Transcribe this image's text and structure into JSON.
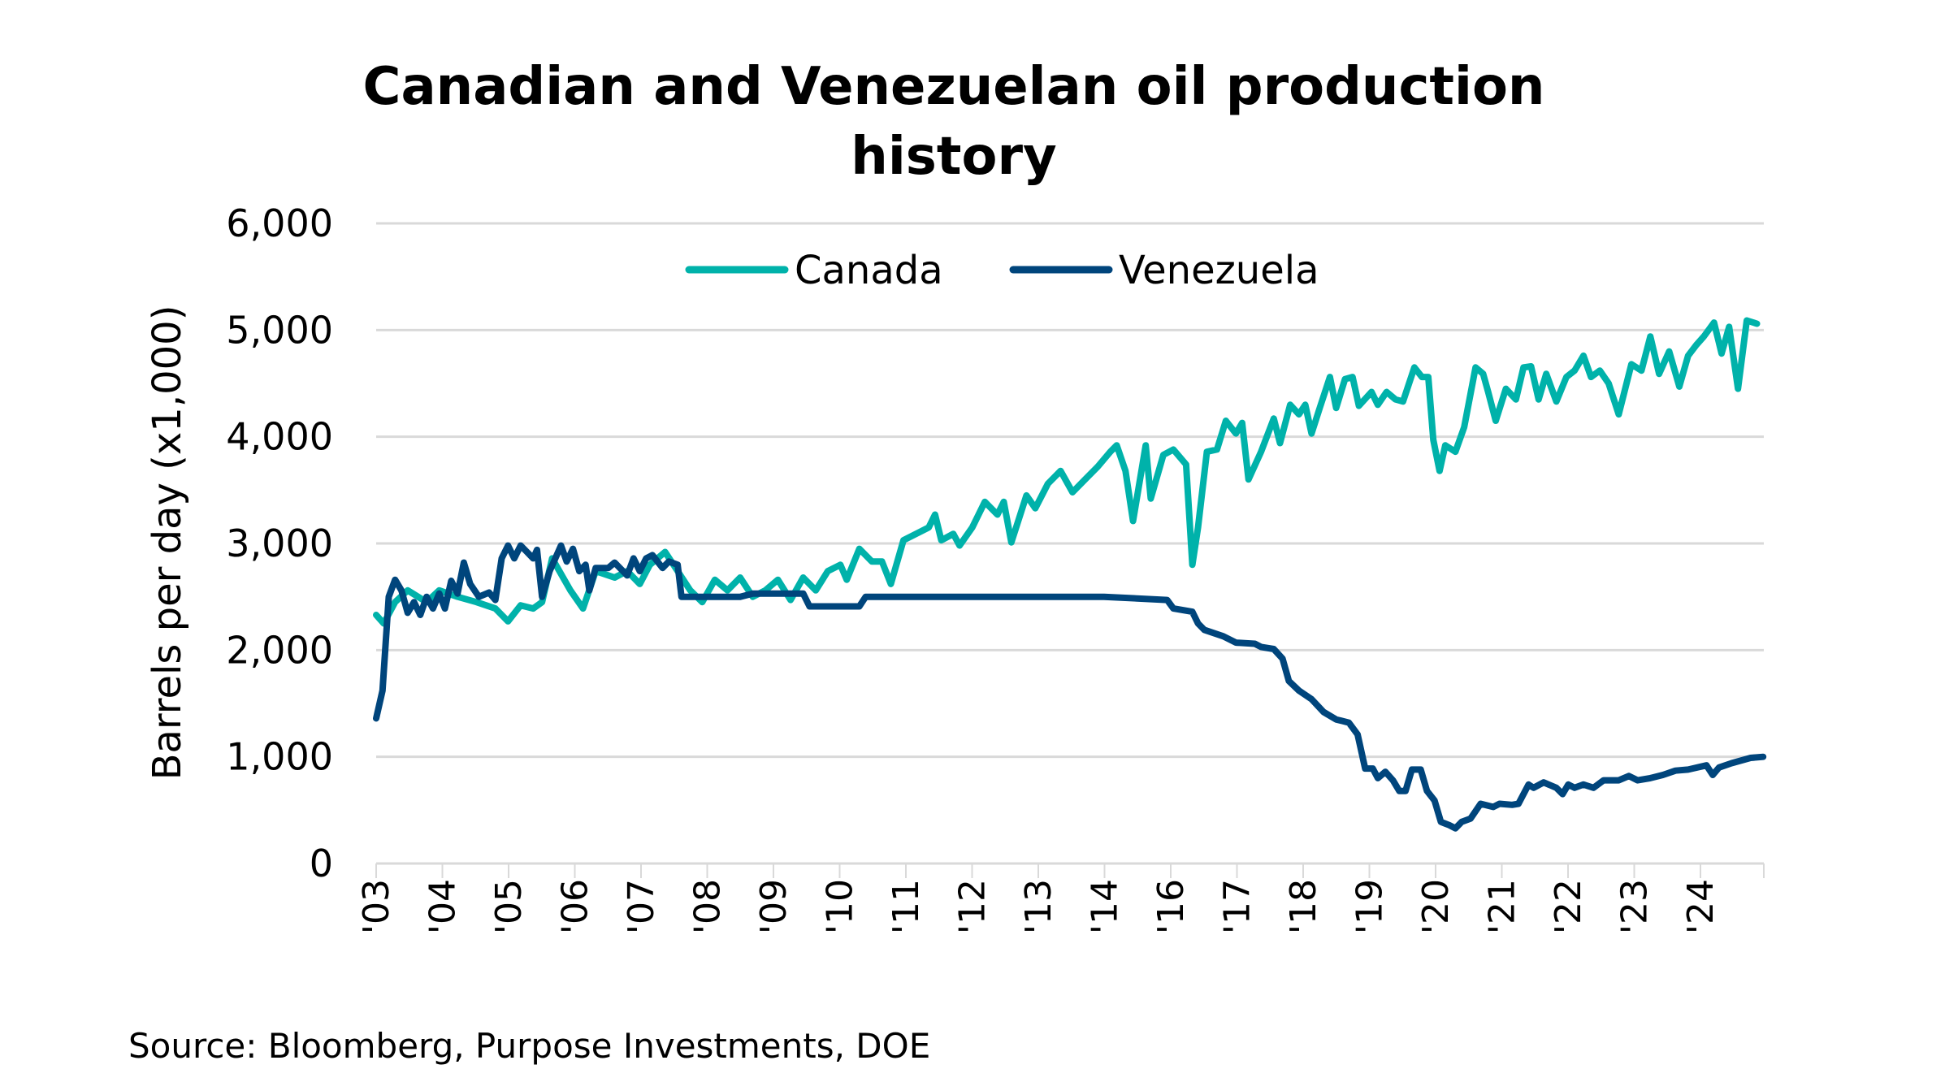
{
  "chart_data": {
    "type": "line",
    "title_lines": [
      "Canadian and Venezuelan oil production",
      "history"
    ],
    "xlabel": "",
    "ylabel": "Barrels per day (x1,000)",
    "ylim": [
      0,
      6000
    ],
    "yticks": [
      0,
      1000,
      2000,
      3000,
      4000,
      5000,
      6000
    ],
    "ytick_labels": [
      "0",
      "1,000",
      "2,000",
      "3,000",
      "4,000",
      "5,000",
      "6,000"
    ],
    "xlim": [
      2003.0,
      2025.0
    ],
    "xtick_labels": [
      "'03",
      "'04",
      "'05",
      "'06",
      "'07",
      "'08",
      "'09",
      "'10",
      "'11",
      "'12",
      "'13",
      "'14",
      "'16",
      "'17",
      "'18",
      "'19",
      "'20",
      "'21",
      "'22",
      "'23",
      "'24"
    ],
    "grid": true,
    "legend_position": "top",
    "source": "Source: Bloomberg, Purpose Investments, DOE",
    "series": [
      {
        "name": "Canada",
        "color": "#00b2aa",
        "points": [
          [
            2003.0,
            2330
          ],
          [
            2003.12,
            2250
          ],
          [
            2003.3,
            2450
          ],
          [
            2003.5,
            2560
          ],
          [
            2003.8,
            2450
          ],
          [
            2004.0,
            2560
          ],
          [
            2004.29,
            2500
          ],
          [
            2004.59,
            2450
          ],
          [
            2004.89,
            2390
          ],
          [
            2005.09,
            2270
          ],
          [
            2005.29,
            2420
          ],
          [
            2005.49,
            2390
          ],
          [
            2005.63,
            2450
          ],
          [
            2005.79,
            2860
          ],
          [
            2006.08,
            2560
          ],
          [
            2006.28,
            2390
          ],
          [
            2006.48,
            2740
          ],
          [
            2006.78,
            2680
          ],
          [
            2006.98,
            2740
          ],
          [
            2007.18,
            2620
          ],
          [
            2007.34,
            2800
          ],
          [
            2007.58,
            2920
          ],
          [
            2007.78,
            2740
          ],
          [
            2007.98,
            2560
          ],
          [
            2008.17,
            2450
          ],
          [
            2008.37,
            2660
          ],
          [
            2008.57,
            2560
          ],
          [
            2008.77,
            2680
          ],
          [
            2008.97,
            2500
          ],
          [
            2009.17,
            2560
          ],
          [
            2009.37,
            2660
          ],
          [
            2009.57,
            2470
          ],
          [
            2009.77,
            2680
          ],
          [
            2009.97,
            2560
          ],
          [
            2010.16,
            2740
          ],
          [
            2010.36,
            2800
          ],
          [
            2010.46,
            2660
          ],
          [
            2010.66,
            2950
          ],
          [
            2010.86,
            2830
          ],
          [
            2011.02,
            2830
          ],
          [
            2011.16,
            2620
          ],
          [
            2011.36,
            3030
          ],
          [
            2011.56,
            3090
          ],
          [
            2011.76,
            3150
          ],
          [
            2011.86,
            3270
          ],
          [
            2011.96,
            3030
          ],
          [
            2012.15,
            3090
          ],
          [
            2012.25,
            2980
          ],
          [
            2012.45,
            3150
          ],
          [
            2012.65,
            3390
          ],
          [
            2012.85,
            3270
          ],
          [
            2012.95,
            3390
          ],
          [
            2013.07,
            3010
          ],
          [
            2013.31,
            3450
          ],
          [
            2013.45,
            3330
          ],
          [
            2013.65,
            3560
          ],
          [
            2013.85,
            3680
          ],
          [
            2014.04,
            3480
          ],
          [
            2014.24,
            3600
          ],
          [
            2014.44,
            3720
          ],
          [
            2014.64,
            3860
          ],
          [
            2014.74,
            3920
          ],
          [
            2014.88,
            3680
          ],
          [
            2015.0,
            3210
          ],
          [
            2015.2,
            3920
          ],
          [
            2015.28,
            3420
          ],
          [
            2015.48,
            3830
          ],
          [
            2015.64,
            3880
          ],
          [
            2015.84,
            3740
          ],
          [
            2015.94,
            2800
          ],
          [
            2016.03,
            3150
          ],
          [
            2016.17,
            3860
          ],
          [
            2016.33,
            3880
          ],
          [
            2016.47,
            4150
          ],
          [
            2016.63,
            4030
          ],
          [
            2016.73,
            4130
          ],
          [
            2016.83,
            3600
          ],
          [
            2017.03,
            3860
          ],
          [
            2017.23,
            4170
          ],
          [
            2017.33,
            3940
          ],
          [
            2017.49,
            4300
          ],
          [
            2017.63,
            4210
          ],
          [
            2017.73,
            4300
          ],
          [
            2017.83,
            4030
          ],
          [
            2017.96,
            4270
          ],
          [
            2018.12,
            4560
          ],
          [
            2018.22,
            4270
          ],
          [
            2018.36,
            4540
          ],
          [
            2018.48,
            4560
          ],
          [
            2018.58,
            4290
          ],
          [
            2018.78,
            4420
          ],
          [
            2018.88,
            4300
          ],
          [
            2019.02,
            4420
          ],
          [
            2019.16,
            4350
          ],
          [
            2019.28,
            4330
          ],
          [
            2019.46,
            4650
          ],
          [
            2019.58,
            4560
          ],
          [
            2019.68,
            4560
          ],
          [
            2019.76,
            3970
          ],
          [
            2019.86,
            3680
          ],
          [
            2019.95,
            3920
          ],
          [
            2020.11,
            3860
          ],
          [
            2020.25,
            4090
          ],
          [
            2020.43,
            4650
          ],
          [
            2020.55,
            4590
          ],
          [
            2020.63,
            4420
          ],
          [
            2020.75,
            4150
          ],
          [
            2020.91,
            4450
          ],
          [
            2021.07,
            4350
          ],
          [
            2021.19,
            4650
          ],
          [
            2021.31,
            4660
          ],
          [
            2021.43,
            4350
          ],
          [
            2021.55,
            4590
          ],
          [
            2021.71,
            4330
          ],
          [
            2021.87,
            4560
          ],
          [
            2022.0,
            4620
          ],
          [
            2022.14,
            4760
          ],
          [
            2022.26,
            4560
          ],
          [
            2022.4,
            4620
          ],
          [
            2022.54,
            4500
          ],
          [
            2022.7,
            4210
          ],
          [
            2022.9,
            4680
          ],
          [
            2023.06,
            4620
          ],
          [
            2023.2,
            4940
          ],
          [
            2023.34,
            4590
          ],
          [
            2023.5,
            4800
          ],
          [
            2023.66,
            4470
          ],
          [
            2023.8,
            4760
          ],
          [
            2023.93,
            4860
          ],
          [
            2024.05,
            4940
          ],
          [
            2024.21,
            5070
          ],
          [
            2024.33,
            4780
          ],
          [
            2024.45,
            5030
          ],
          [
            2024.59,
            4450
          ],
          [
            2024.73,
            5090
          ],
          [
            2024.89,
            5060
          ]
        ]
      },
      {
        "name": "Venezuela",
        "color": "#00457c",
        "points": [
          [
            2003.0,
            1360
          ],
          [
            2003.1,
            1620
          ],
          [
            2003.2,
            2500
          ],
          [
            2003.3,
            2660
          ],
          [
            2003.4,
            2560
          ],
          [
            2003.5,
            2350
          ],
          [
            2003.6,
            2450
          ],
          [
            2003.7,
            2330
          ],
          [
            2003.8,
            2500
          ],
          [
            2003.9,
            2390
          ],
          [
            2004.0,
            2530
          ],
          [
            2004.09,
            2390
          ],
          [
            2004.19,
            2650
          ],
          [
            2004.29,
            2530
          ],
          [
            2004.39,
            2820
          ],
          [
            2004.49,
            2620
          ],
          [
            2004.63,
            2500
          ],
          [
            2004.79,
            2540
          ],
          [
            2004.89,
            2470
          ],
          [
            2004.99,
            2860
          ],
          [
            2005.09,
            2980
          ],
          [
            2005.19,
            2860
          ],
          [
            2005.29,
            2980
          ],
          [
            2005.39,
            2920
          ],
          [
            2005.49,
            2860
          ],
          [
            2005.55,
            2940
          ],
          [
            2005.63,
            2500
          ],
          [
            2005.75,
            2740
          ],
          [
            2005.93,
            2980
          ],
          [
            2006.02,
            2830
          ],
          [
            2006.12,
            2950
          ],
          [
            2006.22,
            2740
          ],
          [
            2006.32,
            2800
          ],
          [
            2006.38,
            2560
          ],
          [
            2006.48,
            2770
          ],
          [
            2006.68,
            2770
          ],
          [
            2006.78,
            2820
          ],
          [
            2006.98,
            2700
          ],
          [
            2007.08,
            2860
          ],
          [
            2007.18,
            2740
          ],
          [
            2007.28,
            2860
          ],
          [
            2007.38,
            2890
          ],
          [
            2007.54,
            2770
          ],
          [
            2007.64,
            2830
          ],
          [
            2007.78,
            2800
          ],
          [
            2007.84,
            2500
          ],
          [
            2008.77,
            2500
          ],
          [
            2008.97,
            2530
          ],
          [
            2009.77,
            2530
          ],
          [
            2009.87,
            2410
          ],
          [
            2010.66,
            2410
          ],
          [
            2010.76,
            2500
          ],
          [
            2014.54,
            2500
          ],
          [
            2015.54,
            2470
          ],
          [
            2015.64,
            2390
          ],
          [
            2015.94,
            2360
          ],
          [
            2016.03,
            2250
          ],
          [
            2016.13,
            2190
          ],
          [
            2016.43,
            2130
          ],
          [
            2016.63,
            2070
          ],
          [
            2016.93,
            2060
          ],
          [
            2017.03,
            2030
          ],
          [
            2017.23,
            2010
          ],
          [
            2017.37,
            1920
          ],
          [
            2017.47,
            1710
          ],
          [
            2017.63,
            1620
          ],
          [
            2017.83,
            1540
          ],
          [
            2018.02,
            1420
          ],
          [
            2018.22,
            1350
          ],
          [
            2018.42,
            1320
          ],
          [
            2018.56,
            1210
          ],
          [
            2018.68,
            890
          ],
          [
            2018.8,
            890
          ],
          [
            2018.88,
            800
          ],
          [
            2019.0,
            860
          ],
          [
            2019.12,
            780
          ],
          [
            2019.22,
            680
          ],
          [
            2019.32,
            680
          ],
          [
            2019.42,
            880
          ],
          [
            2019.56,
            880
          ],
          [
            2019.66,
            680
          ],
          [
            2019.78,
            590
          ],
          [
            2019.88,
            390
          ],
          [
            2020.01,
            360
          ],
          [
            2020.11,
            330
          ],
          [
            2020.21,
            390
          ],
          [
            2020.35,
            420
          ],
          [
            2020.51,
            560
          ],
          [
            2020.71,
            530
          ],
          [
            2020.81,
            560
          ],
          [
            2021.01,
            550
          ],
          [
            2021.11,
            560
          ],
          [
            2021.27,
            740
          ],
          [
            2021.35,
            710
          ],
          [
            2021.51,
            760
          ],
          [
            2021.71,
            710
          ],
          [
            2021.81,
            650
          ],
          [
            2021.9,
            740
          ],
          [
            2022.0,
            710
          ],
          [
            2022.14,
            740
          ],
          [
            2022.3,
            710
          ],
          [
            2022.46,
            780
          ],
          [
            2022.7,
            780
          ],
          [
            2022.86,
            820
          ],
          [
            2023.0,
            780
          ],
          [
            2023.2,
            800
          ],
          [
            2023.4,
            830
          ],
          [
            2023.6,
            870
          ],
          [
            2023.8,
            880
          ],
          [
            2024.09,
            920
          ],
          [
            2024.19,
            830
          ],
          [
            2024.29,
            900
          ],
          [
            2024.49,
            940
          ],
          [
            2024.79,
            990
          ],
          [
            2024.99,
            1000
          ]
        ]
      }
    ]
  }
}
